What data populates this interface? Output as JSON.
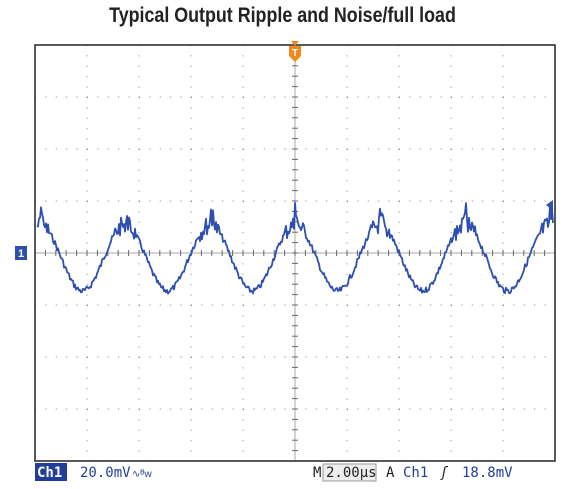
{
  "title": "Typical Output Ripple and Noise/full load",
  "markers": {
    "trigger": "T",
    "channel": "1"
  },
  "status": {
    "channel": "Ch1",
    "scale": "20.0mV",
    "time_prefix": "M",
    "time_scale": "2.00µs",
    "trigger_mode": "A",
    "trigger_channel": "Ch1",
    "trigger_level": "18.8mV"
  }
}
